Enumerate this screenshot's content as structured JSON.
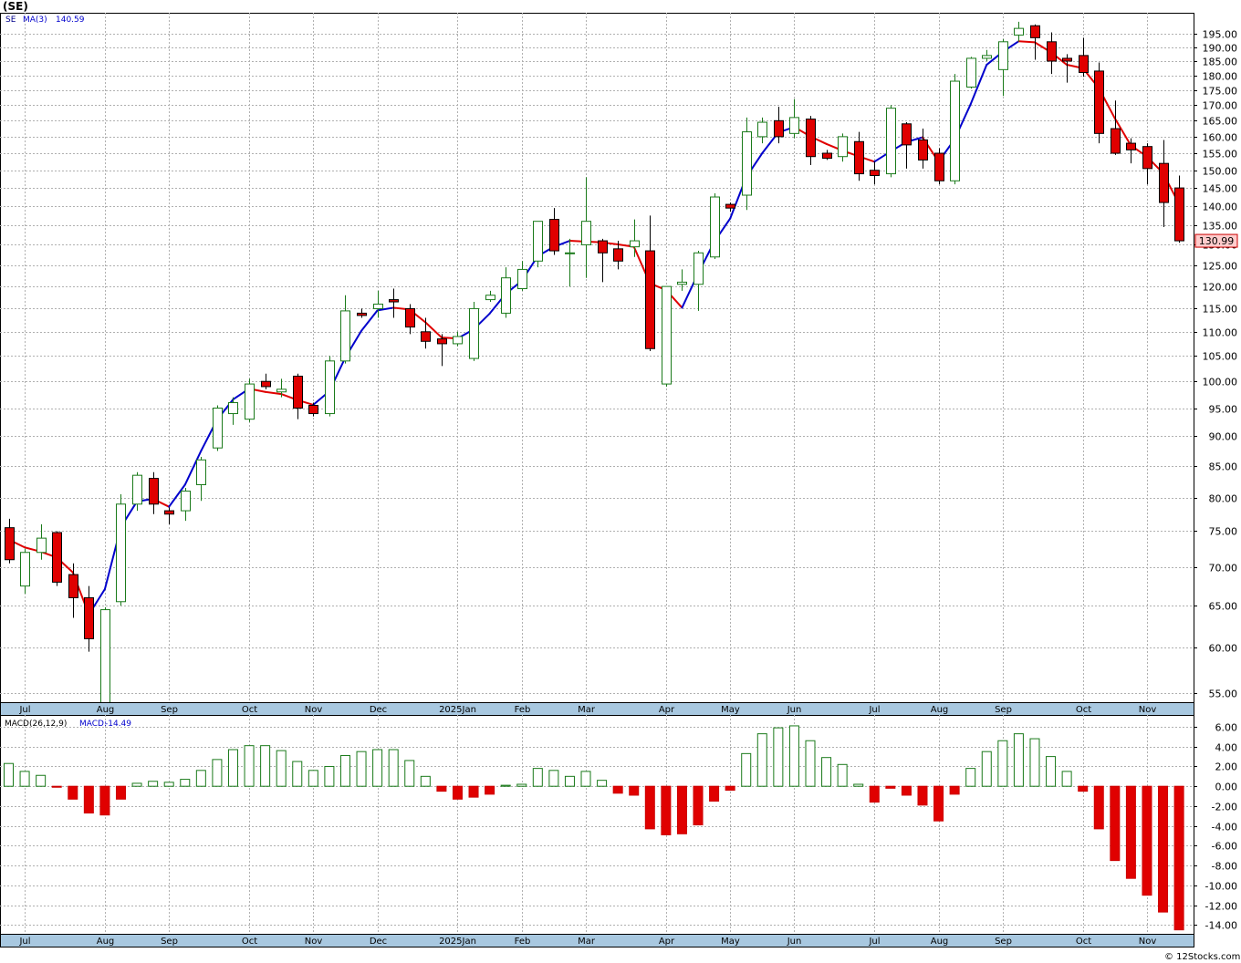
{
  "title": "(SE)",
  "footer": "© 12Stocks.com",
  "colors": {
    "up": "#1a7a1a",
    "down": "#e00000",
    "ma_up": "#0000cc",
    "ma_down": "#e00000",
    "grid": "#b0b0b0",
    "axis_band": "#a8c8e0",
    "price_tag_bg": "#ffcccc"
  },
  "chart_data": [
    {
      "type": "candlestick",
      "legend": {
        "symbol": "SE",
        "indicator": "MA(3)",
        "value": "140.59"
      },
      "last_price_label": "130.99",
      "y_scale": "log",
      "ylim": [
        54,
        203
      ],
      "y_ticks": [
        "55.00",
        "60.00",
        "65.00",
        "70.00",
        "75.00",
        "80.00",
        "85.00",
        "90.00",
        "95.00",
        "100.00",
        "105.00",
        "110.00",
        "115.00",
        "120.00",
        "125.00",
        "130.00",
        "135.00",
        "140.00",
        "145.00",
        "150.00",
        "155.00",
        "160.00",
        "165.00",
        "170.00",
        "175.00",
        "180.00",
        "185.00",
        "190.00",
        "195.00"
      ],
      "x_labels": [
        {
          "label": "Jul",
          "week": 1
        },
        {
          "label": "Aug",
          "week": 6
        },
        {
          "label": "Sep",
          "week": 10
        },
        {
          "label": "Oct",
          "week": 15
        },
        {
          "label": "Nov",
          "week": 19
        },
        {
          "label": "Dec",
          "week": 23
        },
        {
          "label": "2025Jan",
          "week": 28
        },
        {
          "label": "Feb",
          "week": 32
        },
        {
          "label": "Mar",
          "week": 36
        },
        {
          "label": "Apr",
          "week": 41
        },
        {
          "label": "May",
          "week": 45
        },
        {
          "label": "Jun",
          "week": 49
        },
        {
          "label": "Jul",
          "week": 54
        },
        {
          "label": "Aug",
          "week": 58
        },
        {
          "label": "Sep",
          "week": 62
        },
        {
          "label": "Oct",
          "week": 67
        },
        {
          "label": "Nov",
          "week": 71
        }
      ],
      "candles": [
        {
          "o": 75.5,
          "h": 76.8,
          "l": 70.5,
          "c": 71.0
        },
        {
          "o": 67.5,
          "h": 72.5,
          "l": 66.5,
          "c": 72.0
        },
        {
          "o": 72.0,
          "h": 76.0,
          "l": 71.0,
          "c": 74.0
        },
        {
          "o": 74.8,
          "h": 75.0,
          "l": 67.5,
          "c": 68.0
        },
        {
          "o": 69.0,
          "h": 70.5,
          "l": 63.5,
          "c": 66.0
        },
        {
          "o": 66.0,
          "h": 67.5,
          "l": 59.5,
          "c": 61.0
        },
        {
          "o": 53.5,
          "h": 64.8,
          "l": 52.5,
          "c": 64.5
        },
        {
          "o": 65.5,
          "h": 80.5,
          "l": 65.0,
          "c": 79.0
        },
        {
          "o": 79.0,
          "h": 84.0,
          "l": 78.0,
          "c": 83.5
        },
        {
          "o": 83.0,
          "h": 84.0,
          "l": 77.5,
          "c": 79.0
        },
        {
          "o": 78.0,
          "h": 78.5,
          "l": 76.0,
          "c": 77.5
        },
        {
          "o": 78.0,
          "h": 81.5,
          "l": 76.5,
          "c": 81.0
        },
        {
          "o": 82.0,
          "h": 86.5,
          "l": 79.5,
          "c": 86.0
        },
        {
          "o": 88.0,
          "h": 95.5,
          "l": 87.5,
          "c": 95.0
        },
        {
          "o": 94.0,
          "h": 97.0,
          "l": 92.0,
          "c": 96.0
        },
        {
          "o": 93.0,
          "h": 100.5,
          "l": 92.5,
          "c": 99.5
        },
        {
          "o": 100.0,
          "h": 101.5,
          "l": 98.5,
          "c": 99.0
        },
        {
          "o": 98.0,
          "h": 100.5,
          "l": 97.0,
          "c": 98.5
        },
        {
          "o": 101.0,
          "h": 101.5,
          "l": 93.0,
          "c": 95.0
        },
        {
          "o": 95.5,
          "h": 96.0,
          "l": 93.5,
          "c": 94.0
        },
        {
          "o": 94.0,
          "h": 105.0,
          "l": 93.5,
          "c": 104.0
        },
        {
          "o": 104.0,
          "h": 118.0,
          "l": 103.5,
          "c": 114.5
        },
        {
          "o": 114.0,
          "h": 115.0,
          "l": 113.0,
          "c": 113.5
        },
        {
          "o": 115.0,
          "h": 119.0,
          "l": 113.0,
          "c": 116.0
        },
        {
          "o": 117.0,
          "h": 119.5,
          "l": 113.0,
          "c": 116.5
        },
        {
          "o": 115.0,
          "h": 116.0,
          "l": 109.5,
          "c": 111.0
        },
        {
          "o": 110.0,
          "h": 113.0,
          "l": 106.5,
          "c": 108.0
        },
        {
          "o": 108.5,
          "h": 109.5,
          "l": 103.0,
          "c": 107.5
        },
        {
          "o": 107.5,
          "h": 110.0,
          "l": 107.0,
          "c": 109.0
        },
        {
          "o": 104.5,
          "h": 116.5,
          "l": 104.0,
          "c": 115.0
        },
        {
          "o": 117.0,
          "h": 119.0,
          "l": 116.5,
          "c": 118.0
        },
        {
          "o": 114.0,
          "h": 124.5,
          "l": 113.0,
          "c": 122.0
        },
        {
          "o": 119.5,
          "h": 126.0,
          "l": 119.0,
          "c": 124.0
        },
        {
          "o": 126.0,
          "h": 136.0,
          "l": 124.5,
          "c": 136.0
        },
        {
          "o": 136.5,
          "h": 139.5,
          "l": 127.5,
          "c": 128.5
        },
        {
          "o": 128.0,
          "h": 131.5,
          "l": 120.0,
          "c": 128.0
        },
        {
          "o": 130.0,
          "h": 148.0,
          "l": 122.0,
          "c": 136.0
        },
        {
          "o": 131.0,
          "h": 131.5,
          "l": 121.0,
          "c": 128.0
        },
        {
          "o": 129.0,
          "h": 131.0,
          "l": 124.0,
          "c": 126.0
        },
        {
          "o": 129.5,
          "h": 136.5,
          "l": 127.0,
          "c": 131.0
        },
        {
          "o": 128.5,
          "h": 137.5,
          "l": 106.0,
          "c": 106.5
        },
        {
          "o": 99.5,
          "h": 120.0,
          "l": 99.0,
          "c": 120.0
        },
        {
          "o": 120.5,
          "h": 124.0,
          "l": 119.0,
          "c": 121.0
        },
        {
          "o": 120.5,
          "h": 128.5,
          "l": 114.5,
          "c": 128.0
        },
        {
          "o": 127.0,
          "h": 143.5,
          "l": 126.5,
          "c": 142.5
        },
        {
          "o": 140.5,
          "h": 141.0,
          "l": 138.5,
          "c": 139.5
        },
        {
          "o": 143.0,
          "h": 166.0,
          "l": 139.0,
          "c": 161.5
        },
        {
          "o": 160.0,
          "h": 166.0,
          "l": 158.0,
          "c": 164.5
        },
        {
          "o": 165.0,
          "h": 169.5,
          "l": 158.0,
          "c": 160.0
        },
        {
          "o": 161.0,
          "h": 172.0,
          "l": 159.5,
          "c": 166.0
        },
        {
          "o": 165.5,
          "h": 166.5,
          "l": 151.5,
          "c": 154.0
        },
        {
          "o": 155.0,
          "h": 156.0,
          "l": 153.0,
          "c": 153.5
        },
        {
          "o": 154.0,
          "h": 161.0,
          "l": 152.5,
          "c": 160.0
        },
        {
          "o": 158.5,
          "h": 161.5,
          "l": 147.0,
          "c": 149.0
        },
        {
          "o": 150.0,
          "h": 152.5,
          "l": 146.0,
          "c": 148.5
        },
        {
          "o": 149.0,
          "h": 170.0,
          "l": 148.0,
          "c": 169.0
        },
        {
          "o": 164.0,
          "h": 164.5,
          "l": 150.5,
          "c": 157.5
        },
        {
          "o": 159.0,
          "h": 162.5,
          "l": 150.5,
          "c": 153.0
        },
        {
          "o": 155.0,
          "h": 156.5,
          "l": 146.0,
          "c": 147.0
        },
        {
          "o": 147.0,
          "h": 180.5,
          "l": 146.0,
          "c": 178.0
        },
        {
          "o": 176.0,
          "h": 186.5,
          "l": 175.5,
          "c": 186.0
        },
        {
          "o": 186.0,
          "h": 189.0,
          "l": 185.0,
          "c": 187.0
        },
        {
          "o": 182.0,
          "h": 193.0,
          "l": 173.0,
          "c": 192.0
        },
        {
          "o": 194.5,
          "h": 199.5,
          "l": 192.0,
          "c": 197.0
        },
        {
          "o": 198.0,
          "h": 198.5,
          "l": 185.5,
          "c": 193.5
        },
        {
          "o": 192.0,
          "h": 195.5,
          "l": 180.5,
          "c": 185.0
        },
        {
          "o": 186.0,
          "h": 187.5,
          "l": 177.5,
          "c": 185.0
        },
        {
          "o": 187.0,
          "h": 193.5,
          "l": 179.5,
          "c": 181.0
        },
        {
          "o": 181.5,
          "h": 184.5,
          "l": 158.0,
          "c": 161.0
        },
        {
          "o": 162.5,
          "h": 171.5,
          "l": 154.5,
          "c": 155.0
        },
        {
          "o": 158.0,
          "h": 159.5,
          "l": 152.0,
          "c": 156.0
        },
        {
          "o": 157.0,
          "h": 158.0,
          "l": 146.0,
          "c": 150.5
        },
        {
          "o": 152.0,
          "h": 159.0,
          "l": 134.5,
          "c": 141.0
        },
        {
          "o": 145.0,
          "h": 148.5,
          "l": 130.5,
          "c": 131.0
        }
      ],
      "ma_values": [
        73.8,
        72.7,
        72.1,
        71.3,
        69.3,
        63.9,
        67.1,
        75.6,
        79.4,
        79.8,
        78.6,
        82.0,
        87.5,
        92.9,
        96.6,
        98.6,
        98.0,
        97.6,
        96.5,
        95.6,
        98.1,
        104.7,
        110.2,
        114.6,
        115.2,
        114.8,
        112.0,
        108.8,
        108.6,
        110.5,
        113.9,
        118.3,
        121.3,
        127.2,
        129.5,
        131.0,
        130.8,
        130.6,
        130.1,
        129.5,
        120.7,
        119.2,
        115.2,
        123.0,
        130.7,
        136.7,
        148.0,
        155.0,
        161.3,
        163.0,
        160.1,
        157.8,
        155.8,
        154.1,
        152.5,
        155.5,
        158.4,
        159.8,
        152.5,
        159.2,
        170.3,
        183.7,
        188.3,
        192.2,
        191.8,
        188.2,
        183.7,
        182.5,
        175.6,
        165.7,
        157.3,
        154.0,
        149.2,
        140.6
      ]
    },
    {
      "type": "bar",
      "legend": {
        "indicator": "MACD(26,12,9)",
        "label": "MACD:",
        "value": "-14.49"
      },
      "ylim": [
        -14.9,
        7.2
      ],
      "y_ticks": [
        "6.00",
        "4.00",
        "2.00",
        "0.00",
        "-2.00",
        "-4.00",
        "-6.00",
        "-8.00",
        "-10.00",
        "-12.00",
        "-14.00"
      ],
      "values": [
        2.3,
        1.5,
        1.1,
        -0.1,
        -1.3,
        -2.7,
        -2.9,
        -1.3,
        0.3,
        0.5,
        0.4,
        0.7,
        1.6,
        2.7,
        3.7,
        4.1,
        4.1,
        3.6,
        2.5,
        1.6,
        2.0,
        3.1,
        3.5,
        3.7,
        3.7,
        2.6,
        1.0,
        -0.5,
        -1.3,
        -1.1,
        -0.8,
        0.1,
        0.2,
        1.8,
        1.6,
        1.0,
        1.5,
        0.6,
        -0.7,
        -0.9,
        -4.3,
        -4.9,
        -4.8,
        -3.9,
        -1.5,
        -0.4,
        3.3,
        5.3,
        5.9,
        6.1,
        4.6,
        2.9,
        2.2,
        0.2,
        -1.6,
        -0.2,
        -0.9,
        -1.9,
        -3.5,
        -0.8,
        1.8,
        3.5,
        4.6,
        5.3,
        4.8,
        3.0,
        1.5,
        -0.5,
        -4.3,
        -7.5,
        -9.3,
        -11.0,
        -12.7,
        -14.5
      ]
    }
  ]
}
